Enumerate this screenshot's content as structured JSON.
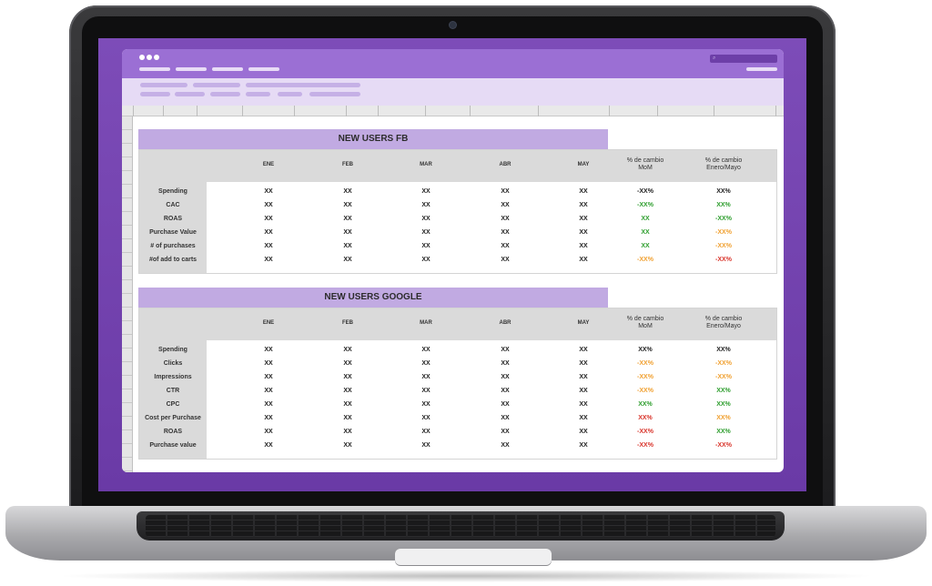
{
  "colors": {
    "purple_header": "#9b6fd4",
    "lavender_menu": "#e6dbf5",
    "section_banner": "#c1aae2",
    "neutral": "#222222",
    "green": "#2e9e2e",
    "orange": "#f0a030",
    "red": "#d9342b"
  },
  "tables": [
    {
      "title": "NEW USERS FB",
      "months": [
        "ENE",
        "FEB",
        "MAR",
        "ABR",
        "MAY"
      ],
      "change_headers": [
        [
          "% de cambio",
          "MoM"
        ],
        [
          "% de cambio",
          "Enero/Mayo"
        ]
      ],
      "rows": [
        {
          "label": "Spending",
          "values": [
            "XX",
            "XX",
            "XX",
            "XX",
            "XX"
          ],
          "mom": "-XX%",
          "mom_color": "neutral",
          "ytd": "XX%",
          "ytd_color": "neutral"
        },
        {
          "label": "CAC",
          "values": [
            "XX",
            "XX",
            "XX",
            "XX",
            "XX"
          ],
          "mom": "-XX%",
          "mom_color": "green",
          "ytd": "XX%",
          "ytd_color": "green"
        },
        {
          "label": "ROAS",
          "values": [
            "XX",
            "XX",
            "XX",
            "XX",
            "XX"
          ],
          "mom": "XX",
          "mom_color": "green",
          "ytd": "-XX%",
          "ytd_color": "green"
        },
        {
          "label": "Purchase Value",
          "values": [
            "XX",
            "XX",
            "XX",
            "XX",
            "XX"
          ],
          "mom": "XX",
          "mom_color": "green",
          "ytd": "-XX%",
          "ytd_color": "orange"
        },
        {
          "label": "#  of purchases",
          "values": [
            "XX",
            "XX",
            "XX",
            "XX",
            "XX"
          ],
          "mom": "XX",
          "mom_color": "green",
          "ytd": "-XX%",
          "ytd_color": "orange"
        },
        {
          "label": "#of add to carts",
          "values": [
            "XX",
            "XX",
            "XX",
            "XX",
            "XX"
          ],
          "mom": "-XX%",
          "mom_color": "orange",
          "ytd": "-XX%",
          "ytd_color": "red"
        }
      ]
    },
    {
      "title": "NEW USERS GOOGLE",
      "months": [
        "ENE",
        "FEB",
        "MAR",
        "ABR",
        "MAY"
      ],
      "change_headers": [
        [
          "% de cambio",
          "MoM"
        ],
        [
          "% de cambio",
          "Enero/Mayo"
        ]
      ],
      "rows": [
        {
          "label": "Spending",
          "values": [
            "XX",
            "XX",
            "XX",
            "XX",
            "XX"
          ],
          "mom": "XX%",
          "mom_color": "neutral",
          "ytd": "XX%",
          "ytd_color": "neutral"
        },
        {
          "label": "Clicks",
          "values": [
            "XX",
            "XX",
            "XX",
            "XX",
            "XX"
          ],
          "mom": "-XX%",
          "mom_color": "orange",
          "ytd": "-XX%",
          "ytd_color": "orange"
        },
        {
          "label": "Impressions",
          "values": [
            "XX",
            "XX",
            "XX",
            "XX",
            "XX"
          ],
          "mom": "-XX%",
          "mom_color": "orange",
          "ytd": "-XX%",
          "ytd_color": "orange"
        },
        {
          "label": "CTR",
          "values": [
            "XX",
            "XX",
            "XX",
            "XX",
            "XX"
          ],
          "mom": "-XX%",
          "mom_color": "orange",
          "ytd": "XX%",
          "ytd_color": "green"
        },
        {
          "label": "CPC",
          "values": [
            "XX",
            "XX",
            "XX",
            "XX",
            "XX"
          ],
          "mom": "XX%",
          "mom_color": "green",
          "ytd": "XX%",
          "ytd_color": "green"
        },
        {
          "label": "Cost per Purchase",
          "values": [
            "XX",
            "XX",
            "XX",
            "XX",
            "XX"
          ],
          "mom": "XX%",
          "mom_color": "red",
          "ytd": "XX%",
          "ytd_color": "orange"
        },
        {
          "label": "ROAS",
          "values": [
            "XX",
            "XX",
            "XX",
            "XX",
            "XX"
          ],
          "mom": "-XX%",
          "mom_color": "red",
          "ytd": "XX%",
          "ytd_color": "green"
        },
        {
          "label": "Purchase value",
          "values": [
            "XX",
            "XX",
            "XX",
            "XX",
            "XX"
          ],
          "mom": "-XX%",
          "mom_color": "red",
          "ytd": "-XX%",
          "ytd_color": "red"
        }
      ]
    }
  ]
}
